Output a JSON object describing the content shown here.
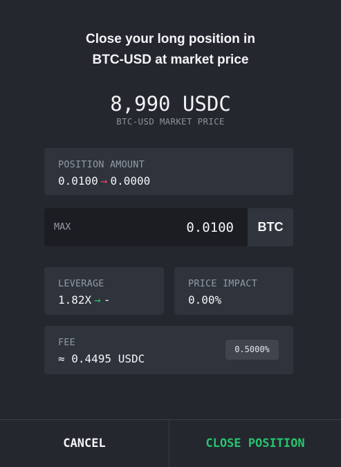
{
  "dialog": {
    "title_line1": "Close your long position in",
    "title_line2": "BTC-USD at market price"
  },
  "market": {
    "price": "8,990 USDC",
    "label": "BTC-USD MARKET PRICE"
  },
  "position_amount": {
    "label": "POSITION AMOUNT",
    "from": "0.0100",
    "arrow": "→",
    "to": "0.0000"
  },
  "amount_input": {
    "max_label": "MAX",
    "value": "0.0100",
    "unit": "BTC"
  },
  "leverage": {
    "label": "LEVERAGE",
    "from": "1.82X",
    "arrow": "→",
    "to": "-"
  },
  "price_impact": {
    "label": "PRICE IMPACT",
    "value": "0.00%"
  },
  "fee": {
    "label": "FEE",
    "value": "≈ 0.4495 USDC",
    "rate": "0.5000%"
  },
  "actions": {
    "cancel": "CANCEL",
    "confirm": "CLOSE POSITION"
  },
  "colors": {
    "background": "#24272e",
    "card": "#2f333c",
    "accent_green": "#27c46e",
    "accent_red": "#f0465d"
  }
}
